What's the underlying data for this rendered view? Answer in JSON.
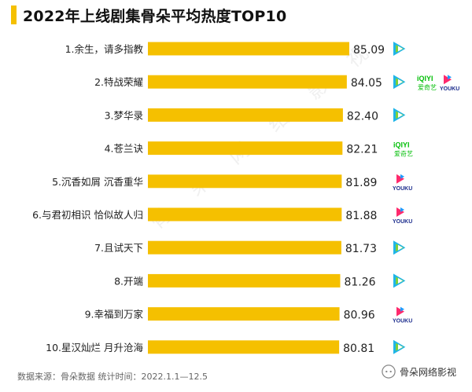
{
  "title": "2022年上线剧集骨朵平均热度TOP10",
  "footer": "数据来源：骨朵数据   统计时间：2022.1.1—12.5",
  "brand": "骨朵网络影视",
  "colors": {
    "bar": "#f5c000",
    "accent": "#f5c000",
    "tencent": [
      "#1fb5e8",
      "#7fd03a",
      "#f7b500"
    ],
    "iqiyi": "#00be06",
    "youku": [
      "#ff2a6d",
      "#1e9bff"
    ]
  },
  "watermark": [
    "骨",
    "朵",
    "网",
    "络",
    "影",
    "视"
  ],
  "chart_data": {
    "type": "bar",
    "orientation": "horizontal",
    "categories": [
      "1.余生，请多指教",
      "2.特战荣耀",
      "3.梦华录",
      "4.苍兰诀",
      "5.沉香如屑 沉香重华",
      "6.与君初相识 恰似故人归",
      "7.且试天下",
      "8.开端",
      "9.幸福到万家",
      "10.星汉灿烂 月升沧海"
    ],
    "values": [
      85.09,
      84.05,
      82.4,
      82.21,
      81.89,
      81.88,
      81.73,
      81.26,
      80.96,
      80.81
    ],
    "value_labels": [
      "85.09",
      "84.05",
      "82.40",
      "82.21",
      "81.89",
      "81.88",
      "81.73",
      "81.26",
      "80.96",
      "80.81"
    ],
    "platforms": [
      [
        "tencent-video"
      ],
      [
        "tencent-video",
        "iqiyi",
        "youku"
      ],
      [
        "tencent-video"
      ],
      [
        "iqiyi"
      ],
      [
        "youku"
      ],
      [
        "youku"
      ],
      [
        "tencent-video"
      ],
      [
        "tencent-video"
      ],
      [
        "youku"
      ],
      [
        "tencent-video"
      ]
    ],
    "iqiyi_label": "iQIYI",
    "iqiyi_sublabel": "爱奇艺",
    "youku_label": "YOUKU",
    "xlim": [
      0,
      85.09
    ],
    "grid": false,
    "legend": "none"
  }
}
